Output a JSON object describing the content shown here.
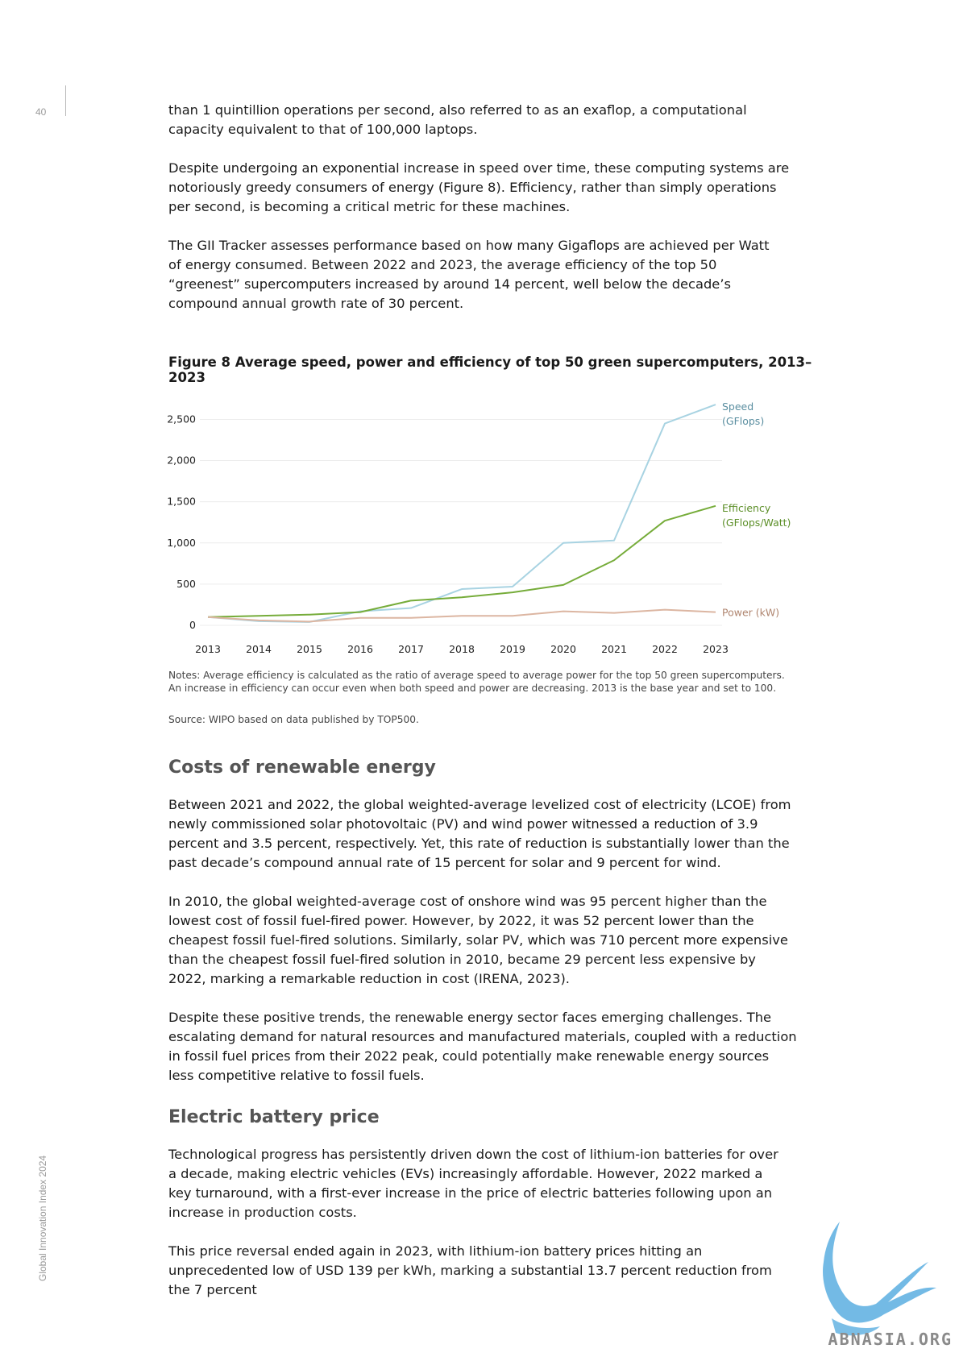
{
  "page": {
    "number": "40",
    "running_title": "Global Innovation Index 2024"
  },
  "paragraphs_top": [
    "than 1 quintillion operations per second, also referred to as an exaflop, a computational capacity equivalent to that of 100,000 laptops.",
    "Despite undergoing an exponential increase in speed over time, these computing systems are notoriously greedy consumers of energy (Figure 8). Efficiency, rather than simply operations per second, is becoming a critical metric for these machines.",
    "The GII Tracker assesses performance based on how many Gigaflops are achieved per Watt of energy consumed. Between 2022 and 2023, the average efficiency of the top 50 “greenest” supercomputers increased by around 14 percent, well below the decade’s compound annual growth rate of 30 percent."
  ],
  "figure": {
    "title": "Figure 8 Average speed, power and efficiency of top 50 green supercomputers, 2013–2023",
    "notes": "Notes: Average efficiency is calculated as the ratio of average speed to average power for the top 50 green supercomputers. An increase in efficiency can occur even when both speed and power are decreasing. 2013 is the base year and set to 100.",
    "source": "Source: WIPO based on data published by TOP500."
  },
  "chart_data": {
    "type": "line",
    "title": "Figure 8 Average speed, power and efficiency of top 50 green supercomputers, 2013–2023",
    "x": [
      "2013",
      "2014",
      "2015",
      "2016",
      "2017",
      "2018",
      "2019",
      "2020",
      "2021",
      "2022",
      "2023"
    ],
    "ylim": [
      0,
      2700
    ],
    "yticks": [
      0,
      500,
      1000,
      1500,
      2000,
      2500
    ],
    "ytick_labels": [
      "0",
      "500",
      "1,000",
      "1,500",
      "2,000",
      "2,500"
    ],
    "grid": "horizontal",
    "legend": "line-end labels, right",
    "series": [
      {
        "name_lines": [
          "Speed",
          "(GFlops)"
        ],
        "color": "#a8d3e2",
        "values": [
          100,
          50,
          40,
          170,
          210,
          440,
          470,
          1000,
          1030,
          2450,
          2680
        ]
      },
      {
        "name_lines": [
          "Efficiency",
          "(GFlops/Watt)"
        ],
        "color": "#76ac3a",
        "values": [
          100,
          115,
          130,
          160,
          300,
          340,
          400,
          490,
          790,
          1270,
          1450
        ]
      },
      {
        "name_lines": [
          "Power (kW)"
        ],
        "color": "#dcb6a2",
        "values": [
          100,
          60,
          45,
          90,
          90,
          115,
          115,
          170,
          150,
          190,
          160
        ]
      }
    ]
  },
  "sections": [
    {
      "heading": "Costs of renewable energy",
      "paragraphs": [
        "Between 2021 and 2022, the global weighted-average levelized cost of electricity (LCOE) from newly commissioned solar photovoltaic (PV) and wind power witnessed a reduction of 3.9 percent and 3.5 percent, respectively. Yet, this rate of reduction is substantially lower than the past decade’s compound annual rate of 15 percent for solar and 9 percent for wind.",
        "In 2010, the global weighted-average cost of onshore wind was 95 percent higher than the lowest cost of fossil fuel-fired power. However, by 2022, it was 52 percent lower than the cheapest fossil fuel-fired solutions. Similarly, solar PV, which was 710 percent more expensive than the cheapest fossil fuel-fired solution in 2010, became 29 percent less expensive by 2022, marking a remarkable reduction in cost (IRENA, 2023).",
        "Despite these positive trends, the renewable energy sector faces emerging challenges. The escalating demand for natural resources and manufactured materials, coupled with a reduction in fossil fuel prices from their 2022 peak, could potentially make renewable energy sources less competitive relative to fossil fuels."
      ]
    },
    {
      "heading": "Electric battery price",
      "paragraphs": [
        "Technological progress has persistently driven down the cost of lithium-ion batteries for over a decade, making electric vehicles (EVs) increasingly affordable. However, 2022 marked a key turnaround, with a first-ever increase in the price of electric batteries following upon an increase in production costs.",
        "This price reversal ended again in 2023, with lithium-ion battery prices hitting an unprecedented low of USD 139 per kWh, marking a substantial 13.7 percent reduction from the 7 percent"
      ]
    }
  ],
  "watermark": {
    "text": "ABNASIA.ORG",
    "icon": "griffin-logo-icon",
    "color": "#5aaee0"
  }
}
